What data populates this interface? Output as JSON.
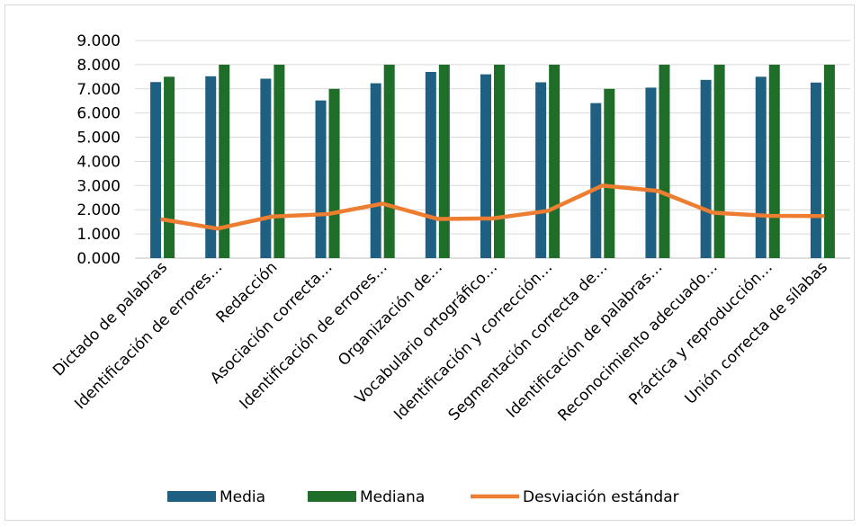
{
  "chart_data": {
    "type": "bar",
    "categories": [
      "Dictado de palabras",
      "Identificación de errores…",
      "Redacción",
      "Asociación correcta…",
      "Identificación de errores…",
      "Organización de…",
      "Vocabulario ortográfico…",
      "Identificación y corrección…",
      "Segmentación correcta de…",
      "Identificación de palabras…",
      "Reconocimiento adecuado…",
      "Práctica y reproducción…",
      "Unión correcta de sílabas"
    ],
    "series": [
      {
        "name": "Media",
        "type": "bar",
        "color": "#1f5f82",
        "values": [
          7.28,
          7.52,
          7.42,
          6.52,
          7.23,
          7.7,
          7.6,
          7.27,
          6.41,
          7.05,
          7.37,
          7.5,
          7.26
        ]
      },
      {
        "name": "Mediana",
        "type": "bar",
        "color": "#1e6e2a",
        "values": [
          7.5,
          8.0,
          8.0,
          7.0,
          8.0,
          8.0,
          8.0,
          8.0,
          7.0,
          8.0,
          8.0,
          8.0,
          8.0
        ]
      },
      {
        "name": "Desviación estándar",
        "type": "line",
        "color": "#ed7d31",
        "values": [
          1.6,
          1.22,
          1.72,
          1.82,
          2.25,
          1.62,
          1.64,
          1.95,
          3.0,
          2.78,
          1.88,
          1.75,
          1.74
        ]
      }
    ],
    "y_ticks": [
      "0.000",
      "1.000",
      "2.000",
      "3.000",
      "4.000",
      "5.000",
      "6.000",
      "7.000",
      "8.000",
      "9.000"
    ],
    "ylim": [
      0,
      9
    ],
    "grid": true,
    "legend_position": "bottom",
    "title": "",
    "xlabel": "",
    "ylabel": ""
  }
}
